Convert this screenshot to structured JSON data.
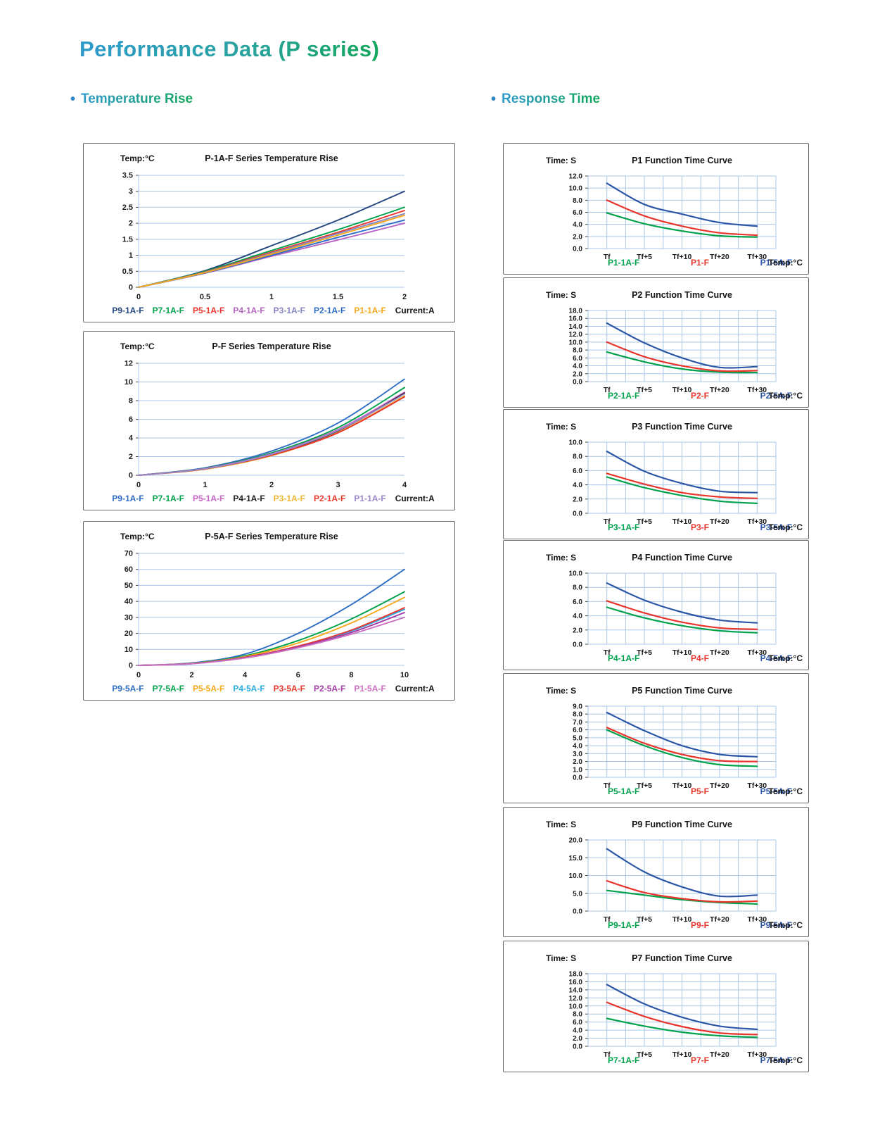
{
  "page": {
    "title": "Performance Data (P series)"
  },
  "sections": {
    "left": {
      "bullet": "•",
      "label": "Temperature Rise"
    },
    "right": {
      "bullet": "•",
      "label": "Response Time"
    }
  },
  "colors": {
    "grid": "#a9c7e8",
    "tick_text": "#1a1a1a",
    "frame_border": "#6a6a6a",
    "bullet_blue": "#2e86c8",
    "heading_gradient_start": "#2e9acd",
    "heading_gradient_end": "#13a75c",
    "curve_green": "#00a14b",
    "curve_red": "#e8352c",
    "curve_blue": "#2b55a5"
  },
  "chart_data": [
    {
      "id": "rise1",
      "type": "line",
      "panel": "left",
      "corner_label": "Temp:°C",
      "title": "P-1A-F Series Temperature Rise",
      "x_axis_label": "Current:A",
      "x": [
        0,
        0.5,
        1,
        1.5,
        2
      ],
      "xtick_labels": [
        "0",
        "0.5",
        "1",
        "1.5",
        "2"
      ],
      "yticks": [
        0,
        0.5,
        1,
        1.5,
        2,
        2.5,
        3,
        3.5
      ],
      "ytick_labels": [
        "0",
        "0.5",
        "1",
        "1.5",
        "2",
        "2.5",
        "3",
        "3.5"
      ],
      "ylim": [
        0,
        3.5
      ],
      "grid": "horizontal",
      "series": [
        {
          "name": "P9-1A-F",
          "color": "#24477e",
          "values": [
            0,
            0.52,
            1.3,
            2.1,
            3.0
          ]
        },
        {
          "name": "P7-1A-F",
          "color": "#00a14b",
          "values": [
            0,
            0.5,
            1.15,
            1.8,
            2.5
          ]
        },
        {
          "name": "P5-1A-F",
          "color": "#e8352c",
          "values": [
            0,
            0.48,
            1.1,
            1.72,
            2.4
          ]
        },
        {
          "name": "P4-1A-F",
          "color": "#b666c2",
          "values": [
            0,
            0.44,
            0.97,
            1.48,
            2.0
          ]
        },
        {
          "name": "P3-1A-F",
          "color": "#8585c2",
          "values": [
            0,
            0.47,
            1.07,
            1.68,
            2.3
          ]
        },
        {
          "name": "P2-1A-F",
          "color": "#2f6ec4",
          "values": [
            0,
            0.45,
            1.0,
            1.56,
            2.1
          ]
        },
        {
          "name": "P1-1A-F",
          "color": "#f5a81c",
          "values": [
            0,
            0.46,
            1.04,
            1.63,
            2.25
          ]
        }
      ]
    },
    {
      "id": "rise2",
      "type": "line",
      "panel": "left",
      "corner_label": "Temp:°C",
      "title": "P-F Series Temperature Rise",
      "x_axis_label": "Current:A",
      "x": [
        0,
        1,
        2,
        3,
        4
      ],
      "xtick_labels": [
        "0",
        "1",
        "2",
        "3",
        "4"
      ],
      "yticks": [
        0,
        2,
        4,
        6,
        8,
        10,
        12
      ],
      "ytick_labels": [
        "0",
        "2",
        "4",
        "6",
        "8",
        "10",
        "12"
      ],
      "ylim": [
        0,
        12
      ],
      "grid": "horizontal",
      "series": [
        {
          "name": "P9-1A-F",
          "color": "#2f6ec4",
          "values": [
            0,
            0.8,
            2.6,
            5.6,
            10.3
          ]
        },
        {
          "name": "P7-1A-F",
          "color": "#00a14b",
          "values": [
            0,
            0.75,
            2.4,
            5.1,
            9.4
          ]
        },
        {
          "name": "P5-1A-F",
          "color": "#c464c4",
          "values": [
            0,
            0.72,
            2.3,
            4.9,
            8.9
          ]
        },
        {
          "name": "P4-1A-F",
          "color": "#231f20",
          "values": [
            0,
            0.7,
            2.2,
            4.75,
            8.8
          ]
        },
        {
          "name": "P3-1A-F",
          "color": "#f0b832",
          "values": [
            0,
            0.65,
            2.1,
            4.6,
            8.5
          ]
        },
        {
          "name": "P2-1A-F",
          "color": "#e8352c",
          "values": [
            0,
            0.68,
            2.15,
            4.55,
            8.4
          ]
        },
        {
          "name": "P1-1A-F",
          "color": "#9a86c8",
          "values": [
            0,
            0.7,
            2.25,
            4.8,
            8.7
          ]
        }
      ]
    },
    {
      "id": "rise3",
      "type": "line",
      "panel": "left",
      "corner_label": "Temp:°C",
      "title": "P-5A-F Series Temperature Rise",
      "x_axis_label": "Current:A",
      "x": [
        0,
        2,
        4,
        6,
        8,
        10
      ],
      "xtick_labels": [
        "0",
        "2",
        "4",
        "6",
        "8",
        "10"
      ],
      "yticks": [
        0,
        10,
        20,
        30,
        40,
        50,
        60,
        70
      ],
      "ytick_labels": [
        "0",
        "10",
        "20",
        "30",
        "40",
        "50",
        "60",
        "70"
      ],
      "ylim": [
        0,
        70
      ],
      "grid": "horizontal",
      "series": [
        {
          "name": "P9-5A-F",
          "color": "#2f6ec4",
          "values": [
            0,
            1.5,
            7.0,
            20.0,
            38.0,
            60.0
          ]
        },
        {
          "name": "P7-5A-F",
          "color": "#00a14b",
          "values": [
            0,
            1.3,
            6.0,
            15.5,
            29.0,
            46.0
          ]
        },
        {
          "name": "P5-5A-F",
          "color": "#f5a81c",
          "values": [
            0,
            1.2,
            5.5,
            14.0,
            26.5,
            42.5
          ]
        },
        {
          "name": "P4-5A-F",
          "color": "#29abe2",
          "values": [
            0,
            1.1,
            5.0,
            11.8,
            21.5,
            35.0
          ]
        },
        {
          "name": "P3-5A-F",
          "color": "#e8352c",
          "values": [
            0,
            1.1,
            5.0,
            12.0,
            22.0,
            36.0
          ]
        },
        {
          "name": "P2-5A-F",
          "color": "#a23ca6",
          "values": [
            0,
            1.0,
            4.8,
            11.5,
            20.5,
            33.0
          ]
        },
        {
          "name": "P1-5A-F",
          "color": "#cd6fc0",
          "values": [
            0,
            1.0,
            4.6,
            11.0,
            19.5,
            30.0
          ]
        }
      ]
    },
    {
      "id": "t1",
      "type": "line",
      "panel": "right",
      "corner_label": "Time: S",
      "title": "P1 Function Time Curve",
      "x_axis_label": "Temp:°C",
      "categories": [
        "Tf",
        "Tf+5",
        "Tf+10",
        "Tf+20",
        "Tf+30"
      ],
      "yticks": [
        0,
        2,
        4,
        6,
        8,
        10,
        12
      ],
      "ytick_labels": [
        "0.0",
        "2.0",
        "4.0",
        "6.0",
        "8.0",
        "10.0",
        "12.0"
      ],
      "ylim": [
        0,
        12
      ],
      "grid": "both",
      "series": [
        {
          "name": "P1-1A-F",
          "color": "#00a14b",
          "values": [
            5.9,
            4.1,
            2.9,
            2.1,
            1.9
          ]
        },
        {
          "name": "P1-F",
          "color": "#e8352c",
          "values": [
            8.0,
            5.4,
            3.7,
            2.6,
            2.2
          ]
        },
        {
          "name": "P1-5A-F",
          "color": "#2b55a5",
          "values": [
            10.8,
            7.3,
            5.7,
            4.3,
            3.7
          ]
        }
      ]
    },
    {
      "id": "t2",
      "type": "line",
      "panel": "right",
      "corner_label": "Time: S",
      "title": "P2 Function Time Curve",
      "x_axis_label": "Temp:°C",
      "categories": [
        "Tf",
        "Tf+5",
        "Tf+10",
        "Tf+20",
        "Tf+30"
      ],
      "yticks": [
        0,
        2,
        4,
        6,
        8,
        10,
        12,
        14,
        16,
        18
      ],
      "ytick_labels": [
        "0.0",
        "2.0",
        "4.0",
        "6.0",
        "8.0",
        "10.0",
        "12.0",
        "14.0",
        "16.0",
        "18.0"
      ],
      "ylim": [
        0,
        18
      ],
      "grid": "both",
      "series": [
        {
          "name": "P2-1A-F",
          "color": "#00a14b",
          "values": [
            7.5,
            5.0,
            3.2,
            2.4,
            2.3
          ]
        },
        {
          "name": "P2-F",
          "color": "#e8352c",
          "values": [
            10.0,
            6.3,
            4.0,
            2.7,
            2.8
          ]
        },
        {
          "name": "P2-5A-F",
          "color": "#2b55a5",
          "values": [
            14.8,
            9.8,
            6.0,
            3.6,
            3.8
          ]
        }
      ]
    },
    {
      "id": "t3",
      "type": "line",
      "panel": "right",
      "corner_label": "Time: S",
      "title": "P3 Function Time Curve",
      "x_axis_label": "Temp:°C",
      "categories": [
        "Tf",
        "Tf+5",
        "Tf+10",
        "Tf+20",
        "Tf+30"
      ],
      "yticks": [
        0,
        2,
        4,
        6,
        8,
        10
      ],
      "ytick_labels": [
        "0.0",
        "2.0",
        "4.0",
        "6.0",
        "8.0",
        "10.0"
      ],
      "ylim": [
        0,
        10
      ],
      "grid": "both",
      "series": [
        {
          "name": "P3-1A-F",
          "color": "#00a14b",
          "values": [
            5.1,
            3.6,
            2.5,
            1.7,
            1.4
          ]
        },
        {
          "name": "P3-F",
          "color": "#e8352c",
          "values": [
            5.6,
            4.1,
            2.9,
            2.3,
            2.1
          ]
        },
        {
          "name": "P3-5A-F",
          "color": "#2b55a5",
          "values": [
            8.7,
            5.9,
            4.2,
            3.1,
            2.9
          ]
        }
      ]
    },
    {
      "id": "t4",
      "type": "line",
      "panel": "right",
      "corner_label": "Time: S",
      "title": "P4 Function Time Curve",
      "x_axis_label": "Temp:°C",
      "categories": [
        "Tf",
        "Tf+5",
        "Tf+10",
        "Tf+20",
        "Tf+30"
      ],
      "yticks": [
        0,
        2,
        4,
        6,
        8,
        10
      ],
      "ytick_labels": [
        "0.0",
        "2.0",
        "4.0",
        "6.0",
        "8.0",
        "10.0"
      ],
      "ylim": [
        0,
        10
      ],
      "grid": "both",
      "series": [
        {
          "name": "P4-1A-F",
          "color": "#00a14b",
          "values": [
            5.2,
            3.7,
            2.6,
            1.9,
            1.6
          ]
        },
        {
          "name": "P4-F",
          "color": "#e8352c",
          "values": [
            6.1,
            4.4,
            3.1,
            2.3,
            2.1
          ]
        },
        {
          "name": "P4-5A-F",
          "color": "#2b55a5",
          "values": [
            8.6,
            6.2,
            4.5,
            3.4,
            3.0
          ]
        }
      ]
    },
    {
      "id": "t5",
      "type": "line",
      "panel": "right",
      "corner_label": "Time: S",
      "title": "P5 Function Time Curve",
      "x_axis_label": "Temp:°C",
      "categories": [
        "Tf",
        "Tf+5",
        "Tf+10",
        "Tf+20",
        "Tf+30"
      ],
      "yticks": [
        0,
        1,
        2,
        3,
        4,
        5,
        6,
        7,
        8,
        9
      ],
      "ytick_labels": [
        "0.0",
        "1.0",
        "2.0",
        "3.0",
        "4.0",
        "5.0",
        "6.0",
        "7.0",
        "8.0",
        "9.0"
      ],
      "ylim": [
        0,
        9
      ],
      "grid": "both",
      "series": [
        {
          "name": "P5-1A-F",
          "color": "#00a14b",
          "values": [
            6.0,
            4.0,
            2.5,
            1.6,
            1.4
          ]
        },
        {
          "name": "P5-F",
          "color": "#e8352c",
          "values": [
            6.3,
            4.3,
            2.9,
            2.1,
            2.0
          ]
        },
        {
          "name": "P5-5A-F",
          "color": "#2b55a5",
          "values": [
            8.2,
            5.9,
            4.0,
            2.9,
            2.6
          ]
        }
      ]
    },
    {
      "id": "t9",
      "type": "line",
      "panel": "right",
      "corner_label": "Time: S",
      "title": "P9 Function Time Curve",
      "x_axis_label": "Temp:°C",
      "categories": [
        "Tf",
        "Tf+5",
        "Tf+10",
        "Tf+20",
        "Tf+30"
      ],
      "yticks": [
        0,
        5,
        10,
        15,
        20
      ],
      "ytick_labels": [
        "0.0",
        "5.0",
        "10.0",
        "15.0",
        "20.0"
      ],
      "ylim": [
        0,
        20
      ],
      "grid": "both",
      "series": [
        {
          "name": "P9-1A-F",
          "color": "#00a14b",
          "values": [
            5.8,
            4.5,
            3.2,
            2.4,
            2.0
          ]
        },
        {
          "name": "P9-F",
          "color": "#e8352c",
          "values": [
            8.5,
            5.2,
            3.5,
            2.6,
            2.8
          ]
        },
        {
          "name": "P9-5A-F",
          "color": "#2b55a5",
          "values": [
            17.5,
            11.0,
            6.8,
            4.2,
            4.5
          ]
        }
      ]
    },
    {
      "id": "t7",
      "type": "line",
      "panel": "right",
      "corner_label": "Time: S",
      "title": "P7 Function Time Curve",
      "x_axis_label": "Temp:°C",
      "categories": [
        "Tf",
        "Tf+5",
        "Tf+10",
        "Tf+20",
        "Tf+30"
      ],
      "yticks": [
        0,
        2,
        4,
        6,
        8,
        10,
        12,
        14,
        16,
        18
      ],
      "ytick_labels": [
        "0.0",
        "2.0",
        "4.0",
        "6.0",
        "8.0",
        "10.0",
        "12.0",
        "14.0",
        "16.0",
        "18.0"
      ],
      "ylim": [
        0,
        18
      ],
      "grid": "both",
      "series": [
        {
          "name": "P7-1A-F",
          "color": "#00a14b",
          "values": [
            6.9,
            5.0,
            3.5,
            2.6,
            2.2
          ]
        },
        {
          "name": "P7-F",
          "color": "#e8352c",
          "values": [
            10.9,
            7.4,
            4.9,
            3.3,
            2.9
          ]
        },
        {
          "name": "P7-5A-F",
          "color": "#2b55a5",
          "values": [
            15.3,
            10.5,
            7.2,
            5.0,
            4.2
          ]
        }
      ]
    }
  ]
}
